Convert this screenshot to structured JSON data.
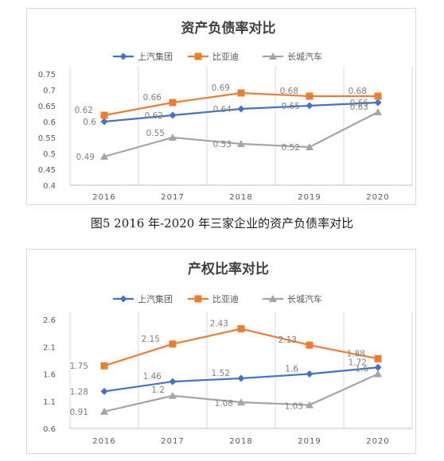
{
  "caption": "图5 2016 年-2020 年三家企业的资产负债率对比",
  "colors": {
    "shqc": "#4472C4",
    "byd": "#ED7D31",
    "ccqc": "#A5A5A5",
    "grid": "#d9d9d9",
    "text": "#595959"
  },
  "chart_data": [
    {
      "type": "line",
      "title": "资产负债率对比",
      "xlabel": "",
      "ylabel": "",
      "categories": [
        "2016",
        "2017",
        "2018",
        "2019",
        "2020"
      ],
      "ylim": [
        0.4,
        0.75
      ],
      "yticks": [
        "0.4",
        "0.45",
        "0.5",
        "0.55",
        "0.6",
        "0.65",
        "0.7",
        "0.75"
      ],
      "grid": "vertical",
      "legend": "top",
      "series": [
        {
          "name": "上汽集团",
          "marker": "diamond",
          "color": "#4472C4",
          "values": [
            0.6,
            0.62,
            0.64,
            0.65,
            0.66
          ],
          "labels": [
            "0.6",
            "0.62",
            "0.64",
            "0.65",
            "0.66"
          ]
        },
        {
          "name": "比亚迪",
          "marker": "square",
          "color": "#ED7D31",
          "values": [
            0.62,
            0.66,
            0.69,
            0.68,
            0.68
          ],
          "labels": [
            "0.62",
            "0.66",
            "0.69",
            "0.68",
            "0.68"
          ]
        },
        {
          "name": "长城汽车",
          "marker": "triangle",
          "color": "#A5A5A5",
          "values": [
            0.49,
            0.55,
            0.53,
            0.52,
            0.63
          ],
          "labels": [
            "0.49",
            "0.55",
            "0.53",
            "0.52",
            "0.63"
          ]
        }
      ]
    },
    {
      "type": "line",
      "title": "产权比率对比",
      "xlabel": "",
      "ylabel": "",
      "categories": [
        "2016",
        "2017",
        "2018",
        "2019",
        "2020"
      ],
      "ylim": [
        0.6,
        2.6
      ],
      "yticks": [
        "0.6",
        "1.1",
        "1.6",
        "2.1",
        "2.6"
      ],
      "grid": "vertical",
      "legend": "top",
      "series": [
        {
          "name": "上汽集团",
          "marker": "diamond",
          "color": "#4472C4",
          "values": [
            1.28,
            1.46,
            1.52,
            1.6,
            1.72
          ],
          "labels": [
            "1.28",
            "1.46",
            "1.52",
            "1.6",
            "1.72"
          ]
        },
        {
          "name": "比亚迪",
          "marker": "square",
          "color": "#ED7D31",
          "values": [
            1.75,
            2.15,
            2.43,
            2.13,
            1.88
          ],
          "labels": [
            "1.75",
            "2.15",
            "2.43",
            "2.13",
            "1.88"
          ]
        },
        {
          "name": "长城汽车",
          "marker": "triangle",
          "color": "#A5A5A5",
          "values": [
            0.91,
            1.2,
            1.08,
            1.03,
            1.6
          ],
          "labels": [
            "0.91",
            "1.2",
            "1.08",
            "1.03",
            "1.6"
          ]
        }
      ]
    }
  ]
}
